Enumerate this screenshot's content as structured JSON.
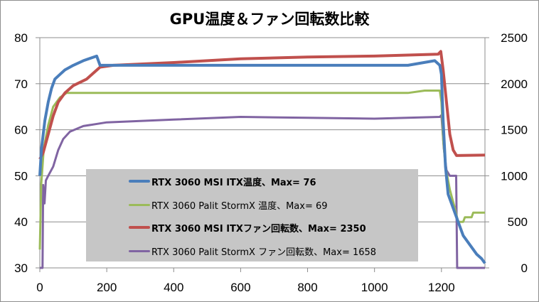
{
  "chart_data": {
    "type": "line",
    "title": "GPU温度＆ファン回転数比較",
    "xlim": [
      0,
      1330
    ],
    "ylim_left": [
      30,
      80
    ],
    "ylim_right": [
      0,
      2500
    ],
    "x_ticks": [
      "0",
      "200",
      "400",
      "600",
      "800",
      "1000",
      "1200"
    ],
    "x_tick_values": [
      0,
      200,
      400,
      600,
      800,
      1000,
      1200
    ],
    "y_left_ticks": [
      "30",
      "40",
      "50",
      "60",
      "70",
      "80"
    ],
    "y_left_tick_values": [
      30,
      40,
      50,
      60,
      70,
      80
    ],
    "y_right_ticks": [
      "0",
      "500",
      "1000",
      "1500",
      "2000",
      "2500"
    ],
    "y_right_tick_values": [
      0,
      500,
      1000,
      1500,
      2000,
      2500
    ],
    "grid": true,
    "legend_placement": "bottom-left-center",
    "series": [
      {
        "name": "RTX 3060 MSI ITX温度、Max= 76",
        "axis": "left",
        "color": "#4a7ebb",
        "width": 4,
        "bold": true,
        "points": [
          [
            0,
            50
          ],
          [
            5,
            56
          ],
          [
            15,
            62
          ],
          [
            25,
            66
          ],
          [
            35,
            69
          ],
          [
            45,
            71
          ],
          [
            60,
            72
          ],
          [
            75,
            73
          ],
          [
            100,
            74
          ],
          [
            130,
            75
          ],
          [
            170,
            76
          ],
          [
            180,
            74
          ],
          [
            250,
            74
          ],
          [
            300,
            74
          ],
          [
            400,
            74
          ],
          [
            600,
            74
          ],
          [
            800,
            74
          ],
          [
            1000,
            74
          ],
          [
            1100,
            74
          ],
          [
            1180,
            75
          ],
          [
            1195,
            74
          ],
          [
            1200,
            72
          ],
          [
            1205,
            62
          ],
          [
            1212,
            52
          ],
          [
            1220,
            46
          ],
          [
            1235,
            43
          ],
          [
            1250,
            40
          ],
          [
            1265,
            37
          ],
          [
            1285,
            35
          ],
          [
            1305,
            33
          ],
          [
            1320,
            32
          ],
          [
            1330,
            31
          ]
        ]
      },
      {
        "name": "RTX 3060 Palit StormX 温度、Max= 69",
        "axis": "left",
        "color": "#9bbb59",
        "width": 3,
        "bold": false,
        "points": [
          [
            0,
            34
          ],
          [
            4,
            48
          ],
          [
            12,
            56
          ],
          [
            25,
            61
          ],
          [
            40,
            65
          ],
          [
            60,
            67
          ],
          [
            80,
            68
          ],
          [
            120,
            68
          ],
          [
            200,
            68
          ],
          [
            300,
            68
          ],
          [
            500,
            68
          ],
          [
            700,
            68
          ],
          [
            900,
            68
          ],
          [
            1100,
            68
          ],
          [
            1150,
            68.5
          ],
          [
            1195,
            68.5
          ],
          [
            1200,
            66
          ],
          [
            1205,
            58
          ],
          [
            1212,
            52
          ],
          [
            1225,
            47
          ],
          [
            1240,
            43
          ],
          [
            1250,
            40
          ],
          [
            1265,
            40
          ],
          [
            1270,
            41
          ],
          [
            1290,
            41
          ],
          [
            1295,
            42
          ],
          [
            1330,
            42
          ]
        ]
      },
      {
        "name": "RTX 3060 MSI ITXファン回転数、Max= 2350",
        "axis": "right",
        "color": "#c0504d",
        "width": 4,
        "bold": true,
        "points": [
          [
            0,
            1180
          ],
          [
            10,
            1250
          ],
          [
            25,
            1450
          ],
          [
            40,
            1650
          ],
          [
            55,
            1800
          ],
          [
            75,
            1900
          ],
          [
            100,
            1980
          ],
          [
            140,
            2050
          ],
          [
            180,
            2180
          ],
          [
            220,
            2200
          ],
          [
            400,
            2230
          ],
          [
            600,
            2270
          ],
          [
            800,
            2290
          ],
          [
            1000,
            2300
          ],
          [
            1190,
            2320
          ],
          [
            1198,
            2350
          ],
          [
            1205,
            2150
          ],
          [
            1215,
            1800
          ],
          [
            1225,
            1450
          ],
          [
            1235,
            1280
          ],
          [
            1245,
            1220
          ],
          [
            1330,
            1225
          ]
        ]
      },
      {
        "name": "RTX 3060 Palit StormX ファン回転数、Max= 1658",
        "axis": "right",
        "color": "#8064a2",
        "width": 3,
        "bold": false,
        "points": [
          [
            0,
            0
          ],
          [
            8,
            0
          ],
          [
            10,
            900
          ],
          [
            14,
            700
          ],
          [
            18,
            950
          ],
          [
            25,
            1000
          ],
          [
            40,
            1100
          ],
          [
            55,
            1280
          ],
          [
            70,
            1400
          ],
          [
            90,
            1480
          ],
          [
            130,
            1540
          ],
          [
            200,
            1580
          ],
          [
            400,
            1610
          ],
          [
            600,
            1640
          ],
          [
            800,
            1630
          ],
          [
            1000,
            1620
          ],
          [
            1195,
            1640
          ],
          [
            1200,
            1658
          ],
          [
            1207,
            1300
          ],
          [
            1215,
            1060
          ],
          [
            1225,
            1000
          ],
          [
            1244,
            1000
          ],
          [
            1247,
            0
          ],
          [
            1330,
            0
          ]
        ]
      }
    ]
  }
}
